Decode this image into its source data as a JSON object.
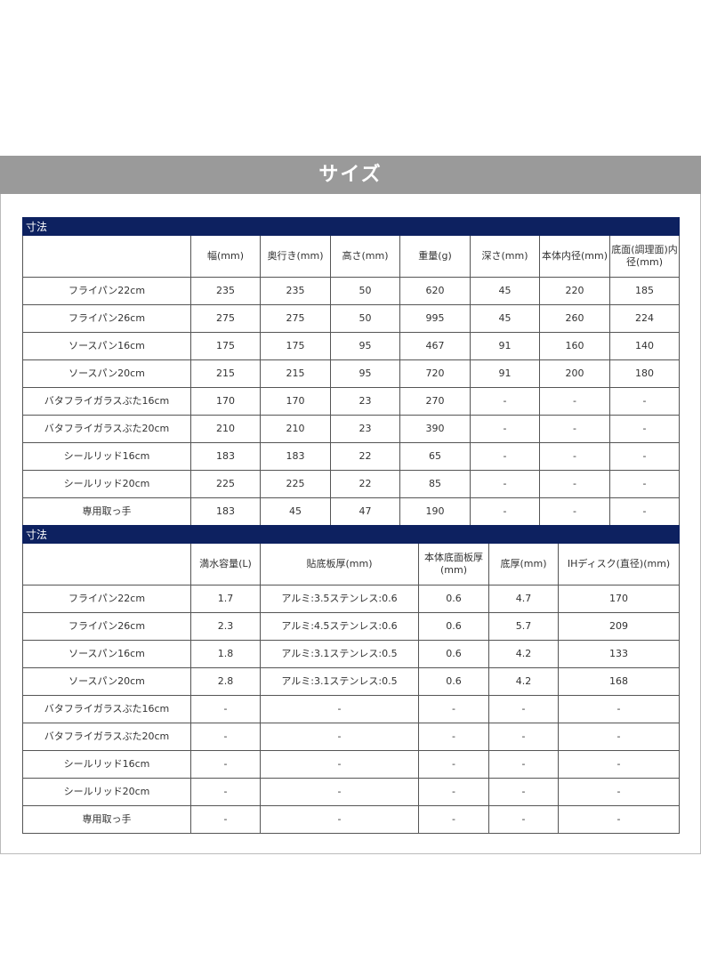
{
  "banner_title": "サイズ",
  "table1": {
    "title": "寸法",
    "headers": [
      "",
      "幅(mm)",
      "奥行き(mm)",
      "高さ(mm)",
      "重量(g)",
      "深さ(mm)",
      "本体内径(mm)",
      "底面(調理面)内径(mm)"
    ],
    "rows": [
      [
        "フライパン22cm",
        "235",
        "235",
        "50",
        "620",
        "45",
        "220",
        "185"
      ],
      [
        "フライパン26cm",
        "275",
        "275",
        "50",
        "995",
        "45",
        "260",
        "224"
      ],
      [
        "ソースパン16cm",
        "175",
        "175",
        "95",
        "467",
        "91",
        "160",
        "140"
      ],
      [
        "ソースパン20cm",
        "215",
        "215",
        "95",
        "720",
        "91",
        "200",
        "180"
      ],
      [
        "バタフライガラスぶた16cm",
        "170",
        "170",
        "23",
        "270",
        "-",
        "-",
        "-"
      ],
      [
        "バタフライガラスぶた20cm",
        "210",
        "210",
        "23",
        "390",
        "-",
        "-",
        "-"
      ],
      [
        "シールリッド16cm",
        "183",
        "183",
        "22",
        "65",
        "-",
        "-",
        "-"
      ],
      [
        "シールリッド20cm",
        "225",
        "225",
        "22",
        "85",
        "-",
        "-",
        "-"
      ],
      [
        "専用取っ手",
        "183",
        "45",
        "47",
        "190",
        "-",
        "-",
        "-"
      ]
    ]
  },
  "table2": {
    "title": "寸法",
    "headers": [
      "",
      "満水容量(L)",
      "貼底板厚(mm)",
      "本体底面板厚(mm)",
      "底厚(mm)",
      "IHディスク(直径)(mm)"
    ],
    "rows": [
      [
        "フライパン22cm",
        "1.7",
        "アルミ:3.5ステンレス:0.6",
        "0.6",
        "4.7",
        "170"
      ],
      [
        "フライパン26cm",
        "2.3",
        "アルミ:4.5ステンレス:0.6",
        "0.6",
        "5.7",
        "209"
      ],
      [
        "ソースパン16cm",
        "1.8",
        "アルミ:3.1ステンレス:0.5",
        "0.6",
        "4.2",
        "133"
      ],
      [
        "ソースパン20cm",
        "2.8",
        "アルミ:3.1ステンレス:0.5",
        "0.6",
        "4.2",
        "168"
      ],
      [
        "バタフライガラスぶた16cm",
        "-",
        "-",
        "-",
        "-",
        "-"
      ],
      [
        "バタフライガラスぶた20cm",
        "-",
        "-",
        "-",
        "-",
        "-"
      ],
      [
        "シールリッド16cm",
        "-",
        "-",
        "-",
        "-",
        "-"
      ],
      [
        "シールリッド20cm",
        "-",
        "-",
        "-",
        "-",
        "-"
      ],
      [
        "専用取っ手",
        "-",
        "-",
        "-",
        "-",
        "-"
      ]
    ]
  }
}
